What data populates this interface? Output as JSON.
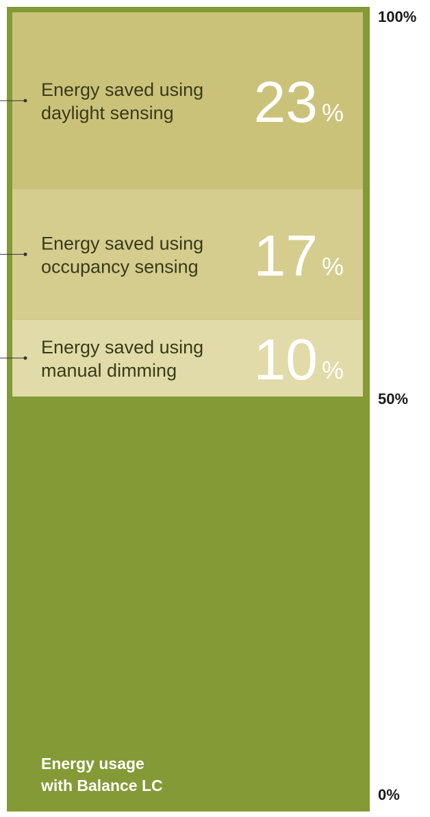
{
  "chart_data": {
    "type": "bar",
    "subtype": "stacked-single-column",
    "ylim": [
      0,
      100
    ],
    "y_ticks": [
      "100%",
      "50%",
      "0%"
    ],
    "usage": {
      "label_line1": "Energy usage",
      "label_line2": "with Balance LC",
      "value": 50
    },
    "savings": [
      {
        "label_line1": "Energy saved using",
        "label_line2": "manual dimming",
        "value": 10,
        "value_text": "10",
        "unit": "%"
      },
      {
        "label_line1": "Energy saved using",
        "label_line2": "occupancy sensing",
        "value": 17,
        "value_text": "17",
        "unit": "%"
      },
      {
        "label_line1": "Energy saved using",
        "label_line2": "daylight sensing",
        "value": 23,
        "value_text": "23",
        "unit": "%"
      }
    ],
    "colors": {
      "frame": "#849a36",
      "usage": "#849a36",
      "manual": "#e0dba8",
      "occupancy": "#d4cd8e",
      "daylight": "#cbc27a",
      "connector": "#333333"
    }
  }
}
